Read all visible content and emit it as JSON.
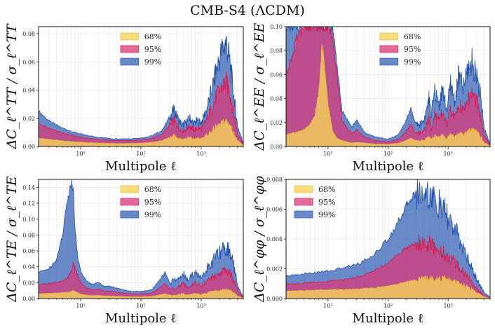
{
  "figure_title": "CMB-S4 (ΛCDM)",
  "colors": {
    "c68": "#f5d55a",
    "c95": "#d83a7a",
    "c99": "#2f5db4",
    "edge99": "#1f4fa8",
    "edge95": "#d81b4c",
    "edge68": "#e9b73a"
  },
  "chart_data": [
    {
      "id": "tt",
      "type": "area",
      "ylabel": "ΔC_ℓ^TT / σ_ℓ^TT",
      "xlabel": "Multipole ℓ",
      "xscale": "log",
      "xlim": [
        2,
        5000
      ],
      "ylim": [
        0,
        0.085
      ],
      "yticks": [
        0.0,
        0.02,
        0.04,
        0.06,
        0.08
      ],
      "yticklabels": [
        "0.00",
        "0.02",
        "0.04",
        "0.06",
        "0.08"
      ],
      "xticks": [
        10,
        100,
        1000
      ],
      "xticklabels": [
        "10¹",
        "10²",
        "10³"
      ],
      "legend": {
        "position": "top-center",
        "entries": [
          "68%",
          "95%",
          "99%"
        ]
      },
      "x": [
        2,
        3,
        5,
        8,
        12,
        20,
        35,
        60,
        100,
        150,
        220,
        300,
        350,
        400,
        480,
        560,
        650,
        750,
        850,
        1000,
        1200,
        1500,
        1800,
        2200,
        2600,
        3000,
        3500,
        4000,
        5000
      ],
      "series": [
        {
          "name": "99%",
          "values": [
            0.025,
            0.018,
            0.013,
            0.01,
            0.008,
            0.0065,
            0.0055,
            0.0055,
            0.006,
            0.0075,
            0.011,
            0.021,
            0.026,
            0.021,
            0.015,
            0.017,
            0.02,
            0.016,
            0.018,
            0.017,
            0.025,
            0.04,
            0.055,
            0.068,
            0.074,
            0.06,
            0.035,
            0.015,
            0.002
          ]
        },
        {
          "name": "95%",
          "values": [
            0.016,
            0.013,
            0.0095,
            0.0075,
            0.006,
            0.005,
            0.0042,
            0.0042,
            0.0046,
            0.0058,
            0.0085,
            0.015,
            0.019,
            0.015,
            0.011,
            0.0125,
            0.0145,
            0.0115,
            0.013,
            0.0125,
            0.018,
            0.027,
            0.036,
            0.042,
            0.046,
            0.038,
            0.022,
            0.01,
            0.0015
          ]
        },
        {
          "name": "68%",
          "values": [
            0.006,
            0.005,
            0.004,
            0.0033,
            0.0028,
            0.0024,
            0.0021,
            0.0021,
            0.0023,
            0.0029,
            0.004,
            0.0065,
            0.008,
            0.0065,
            0.005,
            0.0055,
            0.0063,
            0.005,
            0.0055,
            0.0054,
            0.0075,
            0.011,
            0.014,
            0.016,
            0.018,
            0.015,
            0.009,
            0.004,
            0.0008
          ]
        }
      ]
    },
    {
      "id": "ee",
      "type": "area",
      "ylabel": "ΔC_ℓ^EE / σ_ℓ^EE",
      "xlabel": "Multipole ℓ",
      "xscale": "log",
      "xlim": [
        2,
        5000
      ],
      "ylim": [
        0,
        0.1
      ],
      "yticks": [
        0.0,
        0.02,
        0.04,
        0.06,
        0.08,
        0.1
      ],
      "yticklabels": [
        "0.00",
        "0.02",
        "0.04",
        "0.06",
        "0.08",
        "0.10"
      ],
      "xticks": [
        10,
        100,
        1000
      ],
      "xticklabels": [
        "10¹",
        "10²",
        "10³"
      ],
      "legend": {
        "position": "top-right",
        "entries": [
          "68%",
          "95%",
          "99%"
        ]
      },
      "x": [
        2,
        2.5,
        3,
        4,
        5,
        6,
        7,
        8,
        9,
        10,
        12,
        14,
        17,
        20,
        25,
        30,
        40,
        60,
        100,
        150,
        200,
        240,
        280,
        330,
        400,
        480,
        520,
        600,
        700,
        800,
        950,
        1100,
        1300,
        1500,
        1800,
        2100,
        2500,
        3000,
        3500,
        4000,
        5000
      ],
      "series": [
        {
          "name": "99%",
          "values": [
            0.1,
            0.1,
            0.1,
            0.1,
            0.1,
            0.1,
            0.1,
            0.1,
            0.1,
            0.1,
            0.1,
            0.07,
            0.03,
            0.024,
            0.016,
            0.022,
            0.012,
            0.008,
            0.006,
            0.01,
            0.022,
            0.032,
            0.02,
            0.018,
            0.022,
            0.04,
            0.025,
            0.046,
            0.035,
            0.048,
            0.03,
            0.052,
            0.038,
            0.06,
            0.048,
            0.064,
            0.07,
            0.06,
            0.04,
            0.015,
            0.002
          ]
        },
        {
          "name": "95%",
          "values": [
            0.06,
            0.075,
            0.09,
            0.1,
            0.1,
            0.1,
            0.1,
            0.1,
            0.1,
            0.1,
            0.09,
            0.06,
            0.022,
            0.016,
            0.011,
            0.014,
            0.008,
            0.005,
            0.004,
            0.006,
            0.013,
            0.019,
            0.012,
            0.011,
            0.013,
            0.024,
            0.015,
            0.027,
            0.021,
            0.029,
            0.018,
            0.031,
            0.023,
            0.036,
            0.029,
            0.039,
            0.044,
            0.038,
            0.024,
            0.009,
            0.0012
          ]
        },
        {
          "name": "68%",
          "values": [
            0.01,
            0.011,
            0.012,
            0.014,
            0.018,
            0.025,
            0.045,
            0.086,
            0.06,
            0.035,
            0.012,
            0.007,
            0.005,
            0.004,
            0.003,
            0.0035,
            0.003,
            0.002,
            0.0018,
            0.0028,
            0.005,
            0.007,
            0.005,
            0.0045,
            0.005,
            0.008,
            0.0055,
            0.009,
            0.007,
            0.0095,
            0.0065,
            0.01,
            0.008,
            0.011,
            0.0095,
            0.012,
            0.014,
            0.012,
            0.008,
            0.003,
            0.0005
          ]
        }
      ]
    },
    {
      "id": "te",
      "type": "area",
      "ylabel": "ΔC_ℓ^TE / σ_ℓ^TE",
      "xlabel": "Multipole ℓ",
      "xscale": "log",
      "xlim": [
        2,
        5000
      ],
      "ylim": [
        0,
        0.15
      ],
      "yticks": [
        0.0,
        0.02,
        0.04,
        0.06,
        0.08,
        0.1,
        0.12,
        0.14
      ],
      "yticklabels": [
        "0.00",
        "0.02",
        "0.04",
        "0.06",
        "0.08",
        "0.10",
        "0.12",
        "0.14"
      ],
      "xticks": [
        10,
        100,
        1000
      ],
      "xticklabels": [
        "10¹",
        "10²",
        "10³"
      ],
      "legend": {
        "position": "top-center",
        "entries": [
          "68%",
          "95%",
          "99%"
        ]
      },
      "x": [
        2,
        3,
        4,
        5,
        6,
        7,
        7.5,
        8,
        9,
        10,
        12,
        15,
        20,
        25,
        30,
        40,
        50,
        70,
        100,
        150,
        200,
        250,
        300,
        400,
        500,
        600,
        800,
        1000,
        1300,
        1600,
        2000,
        2500,
        3000,
        3500,
        4000,
        5000
      ],
      "series": [
        {
          "name": "99%",
          "values": [
            0.033,
            0.038,
            0.05,
            0.08,
            0.125,
            0.145,
            0.14,
            0.09,
            0.05,
            0.035,
            0.024,
            0.018,
            0.02,
            0.015,
            0.016,
            0.013,
            0.011,
            0.009,
            0.009,
            0.011,
            0.022,
            0.033,
            0.02,
            0.024,
            0.032,
            0.022,
            0.035,
            0.025,
            0.04,
            0.048,
            0.058,
            0.065,
            0.06,
            0.04,
            0.018,
            0.002
          ]
        },
        {
          "name": "95%",
          "values": [
            0.018,
            0.019,
            0.02,
            0.022,
            0.026,
            0.035,
            0.045,
            0.04,
            0.028,
            0.02,
            0.014,
            0.011,
            0.012,
            0.009,
            0.0095,
            0.008,
            0.0068,
            0.0058,
            0.0058,
            0.007,
            0.013,
            0.019,
            0.012,
            0.014,
            0.019,
            0.013,
            0.02,
            0.015,
            0.023,
            0.027,
            0.032,
            0.036,
            0.033,
            0.022,
            0.01,
            0.0012
          ]
        },
        {
          "name": "68%",
          "values": [
            0.006,
            0.0065,
            0.007,
            0.0075,
            0.008,
            0.009,
            0.01,
            0.009,
            0.007,
            0.0055,
            0.0045,
            0.0038,
            0.004,
            0.0032,
            0.0033,
            0.0029,
            0.0025,
            0.0022,
            0.0022,
            0.0026,
            0.0045,
            0.0062,
            0.0042,
            0.0048,
            0.0062,
            0.0045,
            0.0065,
            0.005,
            0.0075,
            0.0085,
            0.01,
            0.011,
            0.01,
            0.007,
            0.0032,
            0.0004
          ]
        }
      ]
    },
    {
      "id": "pp",
      "type": "area",
      "ylabel": "ΔC_ℓ^φφ / σ_ℓ^φφ",
      "xlabel": "Multipole ℓ",
      "xscale": "log",
      "xlim": [
        2,
        5000
      ],
      "ylim": [
        0,
        0.008
      ],
      "yticks": [
        0.0,
        0.002,
        0.004,
        0.006,
        0.008
      ],
      "yticklabels": [
        "0.000",
        "0.002",
        "0.004",
        "0.006",
        "0.008"
      ],
      "xticks": [
        10,
        100,
        1000
      ],
      "xticklabels": [
        "10¹",
        "10²",
        "10³"
      ],
      "legend": {
        "position": "top-left",
        "entries": [
          "68%",
          "95%",
          "99%"
        ]
      },
      "x": [
        2,
        3,
        5,
        8,
        12,
        20,
        35,
        60,
        100,
        150,
        200,
        250,
        300,
        400,
        500,
        600,
        800,
        1000,
        1300,
        1600,
        2000,
        2500,
        3000,
        3500,
        4000,
        5000
      ],
      "series": [
        {
          "name": "99%",
          "values": [
            0.0015,
            0.0016,
            0.0017,
            0.0018,
            0.0019,
            0.0021,
            0.0024,
            0.003,
            0.004,
            0.0052,
            0.0062,
            0.0068,
            0.0071,
            0.0072,
            0.007,
            0.0066,
            0.006,
            0.0054,
            0.0046,
            0.0038,
            0.0029,
            0.002,
            0.0013,
            0.0008,
            0.0004,
            0.0001
          ]
        },
        {
          "name": "95%",
          "values": [
            0.001,
            0.001,
            0.0011,
            0.0011,
            0.0012,
            0.0013,
            0.0015,
            0.0019,
            0.0024,
            0.003,
            0.0034,
            0.0036,
            0.0037,
            0.0037,
            0.0036,
            0.0034,
            0.0031,
            0.0028,
            0.0024,
            0.002,
            0.0016,
            0.0011,
            0.0007,
            0.0004,
            0.0002,
            5e-05
          ]
        },
        {
          "name": "68%",
          "values": [
            0.0005,
            0.00052,
            0.00055,
            0.00058,
            0.0006,
            0.00062,
            0.00065,
            0.00072,
            0.00085,
            0.001,
            0.00112,
            0.0012,
            0.00127,
            0.00133,
            0.00135,
            0.00135,
            0.00132,
            0.00126,
            0.00115,
            0.001,
            0.00082,
            0.0006,
            0.0004,
            0.00024,
            0.00012,
            2e-05
          ]
        }
      ]
    }
  ]
}
